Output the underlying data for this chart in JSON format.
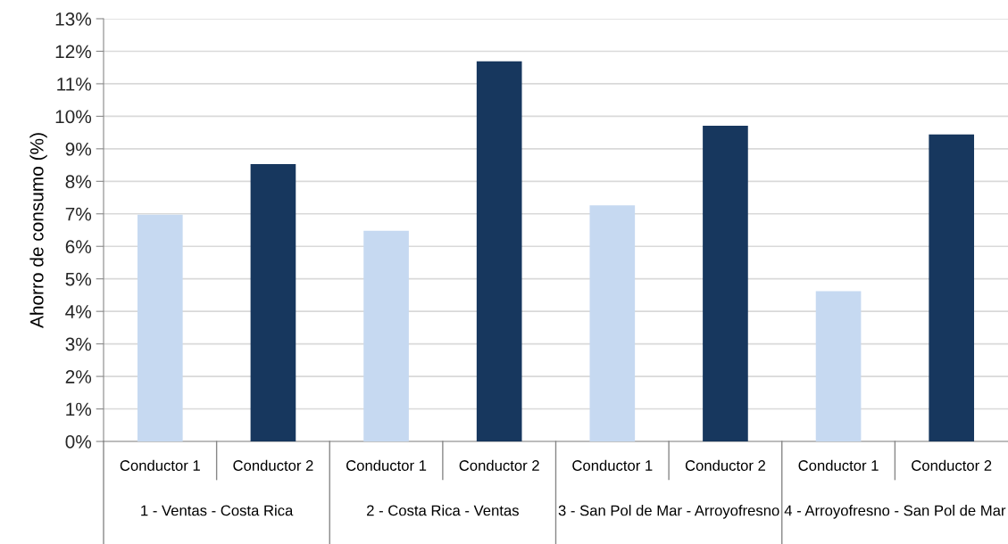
{
  "chart_data": {
    "type": "bar",
    "ylabel": "Ahorro de consumo (%)",
    "categories": [
      "1 - Ventas - Costa Rica",
      "2 - Costa Rica - Ventas",
      "3 - San Pol de Mar - Arroyofresno",
      "4 - Arroyofresno - San Pol de Mar"
    ],
    "series": [
      {
        "name": "Conductor 1",
        "color": "#c6d9f1",
        "values": [
          6.97,
          6.48,
          7.26,
          4.62
        ]
      },
      {
        "name": "Conductor 2",
        "color": "#17375e",
        "values": [
          8.53,
          11.69,
          9.71,
          9.44
        ]
      }
    ],
    "ylim": [
      0,
      13
    ],
    "yticks": [
      {
        "value": 0,
        "label": "0%"
      },
      {
        "value": 1,
        "label": "1%"
      },
      {
        "value": 2,
        "label": "2%"
      },
      {
        "value": 3,
        "label": "3%"
      },
      {
        "value": 4,
        "label": "4%"
      },
      {
        "value": 5,
        "label": "5%"
      },
      {
        "value": 6,
        "label": "6%"
      },
      {
        "value": 7,
        "label": "7%"
      },
      {
        "value": 8,
        "label": "8%"
      },
      {
        "value": 9,
        "label": "9%"
      },
      {
        "value": 10,
        "label": "10%"
      },
      {
        "value": 11,
        "label": "11%"
      },
      {
        "value": 12,
        "label": "12%"
      },
      {
        "value": 13,
        "label": "13%"
      }
    ],
    "grid": "y",
    "legend": false
  }
}
